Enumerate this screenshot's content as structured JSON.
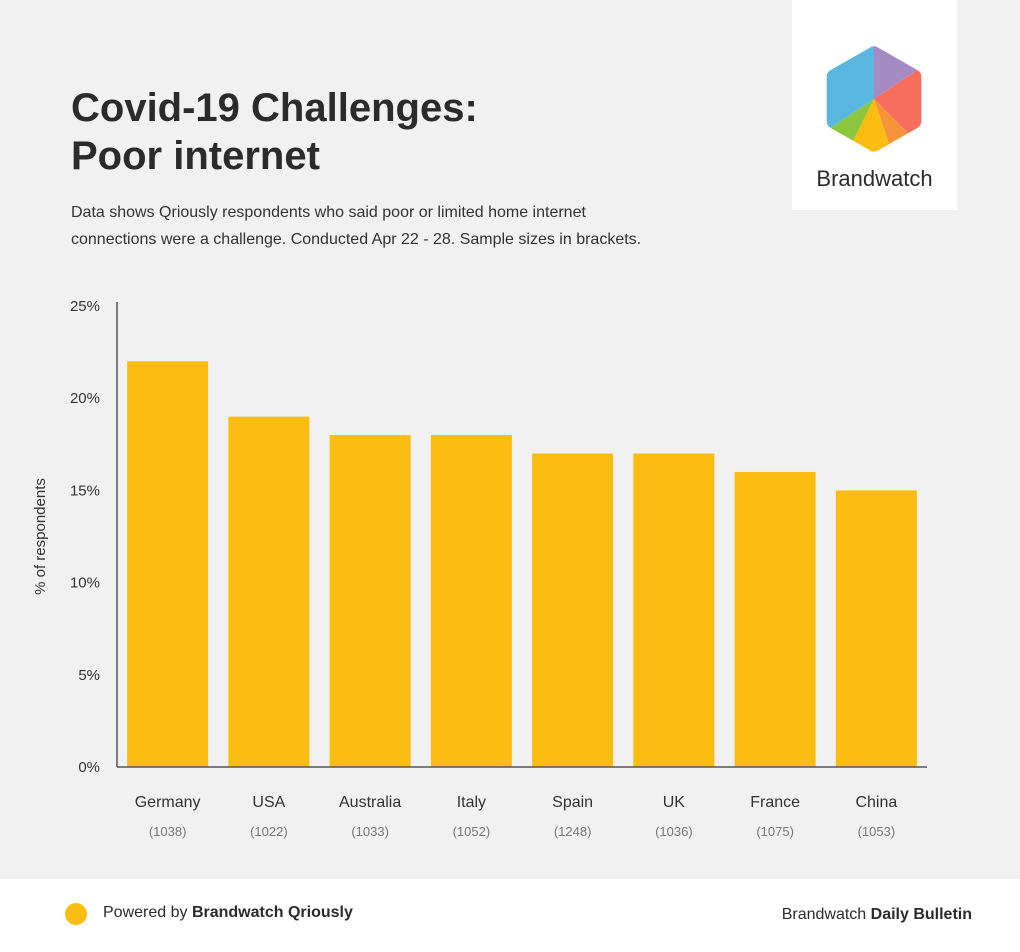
{
  "header": {
    "title_line1": "Covid-19 Challenges:",
    "title_line2": "Poor internet",
    "subtitle_line1": "Data shows Qriously respondents who said poor or limited home internet",
    "subtitle_line2": "connections were a challenge. Conducted Apr 22 - 28. Sample sizes in brackets."
  },
  "logo": {
    "text": "Brandwatch",
    "colors": [
      "#5ab8e0",
      "#a58ac4",
      "#f76e5c",
      "#f7943a",
      "#fcbd12",
      "#8cc63f"
    ]
  },
  "chart_data": {
    "type": "bar",
    "title": "",
    "xlabel": "",
    "ylabel": "% of respondents",
    "categories": [
      "Germany",
      "USA",
      "Australia",
      "Italy",
      "Spain",
      "UK",
      "France",
      "China"
    ],
    "sample_sizes": [
      "(1038)",
      "(1022)",
      "(1033)",
      "(1052)",
      "(1248)",
      "(1036)",
      "(1075)",
      "(1053)"
    ],
    "values": [
      22,
      19,
      18,
      18,
      17,
      17,
      16,
      15
    ],
    "ylim": [
      0,
      25
    ],
    "yticks": [
      {
        "value": 0,
        "label": "0%"
      },
      {
        "value": 5,
        "label": "5%"
      },
      {
        "value": 10,
        "label": "10%"
      },
      {
        "value": 15,
        "label": "15%"
      },
      {
        "value": 20,
        "label": "20%"
      },
      {
        "value": 25,
        "label": "25%"
      }
    ],
    "bar_color": "#fcbd12",
    "grid": false,
    "legend": "none"
  },
  "footer": {
    "powered_prefix": "Powered by ",
    "powered_brand": "Brandwatch Qriously",
    "bulletin_prefix": "Brandwatch ",
    "bulletin_name": "Daily Bulletin",
    "dot_color": "#fcbd12"
  }
}
